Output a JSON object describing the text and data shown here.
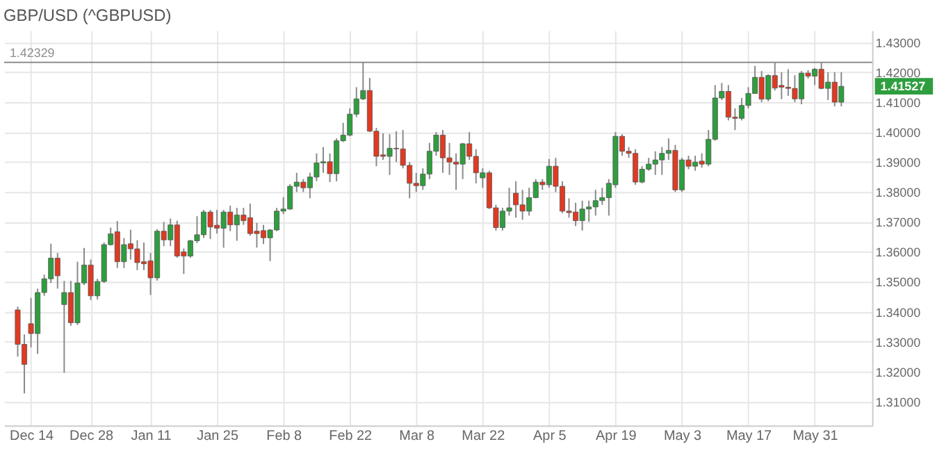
{
  "chart_data": {
    "type": "candlestick",
    "title": "GBP/USD (^GBPUSD)",
    "categories": [
      null,
      null,
      "Dec 14",
      null,
      null,
      null,
      null,
      null,
      null,
      null,
      null,
      "Dec 28",
      null,
      null,
      null,
      null,
      null,
      null,
      null,
      null,
      "Jan 11",
      null,
      null,
      null,
      null,
      null,
      null,
      null,
      null,
      null,
      "Jan 25",
      null,
      null,
      null,
      null,
      null,
      null,
      null,
      null,
      null,
      "Feb 8",
      null,
      null,
      null,
      null,
      null,
      null,
      null,
      null,
      null,
      "Feb 22",
      null,
      null,
      null,
      null,
      null,
      null,
      null,
      null,
      null,
      "Mar 8",
      null,
      null,
      null,
      null,
      null,
      null,
      null,
      null,
      null,
      "Mar 22",
      null,
      null,
      null,
      null,
      null,
      null,
      null,
      null,
      null,
      "Apr 5",
      null,
      null,
      null,
      null,
      null,
      null,
      null,
      null,
      null,
      "Apr 19",
      null,
      null,
      null,
      null,
      null,
      null,
      null,
      null,
      null,
      "May 3",
      null,
      null,
      null,
      null,
      null,
      null,
      null,
      null,
      null,
      "May 17",
      null,
      null,
      null,
      null,
      null,
      null,
      null,
      null,
      null,
      "May 31",
      null,
      null,
      null,
      null
    ],
    "ohlc": [
      [
        1.3406,
        1.3417,
        1.325,
        1.3291
      ],
      [
        1.3291,
        1.3324,
        1.3127,
        1.3224
      ],
      [
        1.336,
        1.3446,
        1.3281,
        1.3327
      ],
      [
        1.3327,
        1.3477,
        1.3259,
        1.3464
      ],
      [
        1.3464,
        1.3524,
        1.3453,
        1.351
      ],
      [
        1.351,
        1.3627,
        1.3496,
        1.3579
      ],
      [
        1.3579,
        1.3596,
        1.3477,
        1.352
      ],
      [
        1.3424,
        1.3503,
        1.3196,
        1.3464
      ],
      [
        1.3464,
        1.3503,
        1.3353,
        1.3363
      ],
      [
        1.3363,
        1.3567,
        1.3356,
        1.3496
      ],
      [
        1.3496,
        1.3613,
        1.3489,
        1.3556
      ],
      [
        1.3556,
        1.3574,
        1.3439,
        1.3453
      ],
      [
        1.3453,
        1.351,
        1.3441,
        1.3501
      ],
      [
        1.3501,
        1.3631,
        1.3496,
        1.3624
      ],
      [
        1.3624,
        1.3681,
        1.3621,
        1.366
      ],
      [
        1.3667,
        1.3703,
        1.3546,
        1.3567
      ],
      [
        1.3567,
        1.3646,
        1.3546,
        1.3624
      ],
      [
        1.3627,
        1.3674,
        1.3574,
        1.361
      ],
      [
        1.361,
        1.3639,
        1.3539,
        1.3564
      ],
      [
        1.3567,
        1.3631,
        1.3539,
        1.356
      ],
      [
        1.357,
        1.3596,
        1.3456,
        1.3513
      ],
      [
        1.3513,
        1.3676,
        1.3504,
        1.3669
      ],
      [
        1.3669,
        1.37,
        1.3619,
        1.364
      ],
      [
        1.364,
        1.3711,
        1.3619,
        1.369
      ],
      [
        1.369,
        1.3704,
        1.358,
        1.3586
      ],
      [
        1.36,
        1.3611,
        1.3526,
        1.3586
      ],
      [
        1.3586,
        1.364,
        1.358,
        1.3637
      ],
      [
        1.3637,
        1.3719,
        1.3629,
        1.3657
      ],
      [
        1.3657,
        1.374,
        1.3647,
        1.3733
      ],
      [
        1.3733,
        1.374,
        1.3643,
        1.3683
      ],
      [
        1.3689,
        1.374,
        1.3661,
        1.3679
      ],
      [
        1.3679,
        1.374,
        1.3614,
        1.3733
      ],
      [
        1.3733,
        1.3754,
        1.3669,
        1.369
      ],
      [
        1.369,
        1.3747,
        1.3637,
        1.3723
      ],
      [
        1.3723,
        1.3747,
        1.369,
        1.3704
      ],
      [
        1.3714,
        1.3761,
        1.3654,
        1.3661
      ],
      [
        1.3669,
        1.3697,
        1.3614,
        1.3661
      ],
      [
        1.3671,
        1.369,
        1.3626,
        1.3647
      ],
      [
        1.3647,
        1.3676,
        1.3569,
        1.3673
      ],
      [
        1.3673,
        1.3747,
        1.3669,
        1.3736
      ],
      [
        1.3736,
        1.3783,
        1.3726,
        1.3743
      ],
      [
        1.3743,
        1.3826,
        1.374,
        1.3819
      ],
      [
        1.3819,
        1.3864,
        1.38,
        1.3833
      ],
      [
        1.3833,
        1.3843,
        1.38,
        1.3814
      ],
      [
        1.3814,
        1.3864,
        1.3779,
        1.385
      ],
      [
        1.385,
        1.3929,
        1.3836,
        1.3897
      ],
      [
        1.3897,
        1.395,
        1.3864,
        1.3901
      ],
      [
        1.3901,
        1.3929,
        1.3833,
        1.3861
      ],
      [
        1.3861,
        1.3979,
        1.3836,
        1.3971
      ],
      [
        1.3971,
        1.4031,
        1.3967,
        1.399
      ],
      [
        1.399,
        1.4079,
        1.3986,
        1.406
      ],
      [
        1.406,
        1.415,
        1.405,
        1.4111
      ],
      [
        1.4111,
        1.4233,
        1.4107,
        1.4139
      ],
      [
        1.4139,
        1.4181,
        1.4,
        1.4003
      ],
      [
        1.4003,
        1.4014,
        1.3886,
        1.3919
      ],
      [
        1.3924,
        1.3996,
        1.3907,
        1.3919
      ],
      [
        1.3919,
        1.3993,
        1.3857,
        1.3946
      ],
      [
        1.3946,
        1.4003,
        1.39,
        1.3944
      ],
      [
        1.3944,
        1.4007,
        1.3879,
        1.3889
      ],
      [
        1.3889,
        1.39,
        1.3779,
        1.3829
      ],
      [
        1.3829,
        1.3864,
        1.38,
        1.3821
      ],
      [
        1.3821,
        1.3879,
        1.3807,
        1.386
      ],
      [
        1.386,
        1.3964,
        1.3843,
        1.3936
      ],
      [
        1.3936,
        1.4,
        1.3921,
        1.399
      ],
      [
        1.399,
        1.4007,
        1.3864,
        1.3914
      ],
      [
        1.3914,
        1.3964,
        1.3857,
        1.39
      ],
      [
        1.39,
        1.3929,
        1.3807,
        1.3893
      ],
      [
        1.3893,
        1.3964,
        1.3843,
        1.3961
      ],
      [
        1.3961,
        1.4,
        1.3907,
        1.3919
      ],
      [
        1.3919,
        1.3943,
        1.3829,
        1.3864
      ],
      [
        1.3847,
        1.3879,
        1.3814,
        1.3864
      ],
      [
        1.3864,
        1.3871,
        1.3743,
        1.3747
      ],
      [
        1.3747,
        1.3757,
        1.3671,
        1.3681
      ],
      [
        1.3681,
        1.3747,
        1.3671,
        1.3736
      ],
      [
        1.3736,
        1.3814,
        1.3721,
        1.3747
      ],
      [
        1.3796,
        1.3836,
        1.3714,
        1.3757
      ],
      [
        1.3757,
        1.3807,
        1.3707,
        1.3736
      ],
      [
        1.3736,
        1.3814,
        1.3721,
        1.3781
      ],
      [
        1.3781,
        1.3843,
        1.3779,
        1.3833
      ],
      [
        1.3833,
        1.3843,
        1.3807,
        1.3824
      ],
      [
        1.3824,
        1.391,
        1.3814,
        1.3886
      ],
      [
        1.3886,
        1.3914,
        1.38,
        1.3819
      ],
      [
        1.3819,
        1.3836,
        1.3729,
        1.3736
      ],
      [
        1.3736,
        1.3779,
        1.3714,
        1.3731
      ],
      [
        1.3733,
        1.3764,
        1.3686,
        1.3704
      ],
      [
        1.3704,
        1.3771,
        1.3671,
        1.3743
      ],
      [
        1.3743,
        1.3771,
        1.37,
        1.375
      ],
      [
        1.375,
        1.3807,
        1.3721,
        1.3771
      ],
      [
        1.3771,
        1.3814,
        1.3757,
        1.3781
      ],
      [
        1.3781,
        1.3843,
        1.3721,
        1.3829
      ],
      [
        1.3824,
        1.4,
        1.3814,
        1.3986
      ],
      [
        1.3986,
        1.3993,
        1.3921,
        1.3936
      ],
      [
        1.3936,
        1.395,
        1.3914,
        1.3929
      ],
      [
        1.3929,
        1.3943,
        1.3824,
        1.3833
      ],
      [
        1.3833,
        1.3886,
        1.3829,
        1.3876
      ],
      [
        1.3876,
        1.3914,
        1.3871,
        1.3893
      ],
      [
        1.3893,
        1.3936,
        1.3857,
        1.3907
      ],
      [
        1.3907,
        1.395,
        1.3857,
        1.3929
      ],
      [
        1.3929,
        1.3979,
        1.3907,
        1.3939
      ],
      [
        1.3939,
        1.3957,
        1.38,
        1.3807
      ],
      [
        1.3807,
        1.3914,
        1.38,
        1.3907
      ],
      [
        1.3907,
        1.3921,
        1.3876,
        1.3886
      ],
      [
        1.3886,
        1.3921,
        1.3871,
        1.39
      ],
      [
        1.3903,
        1.3929,
        1.3881,
        1.3893
      ],
      [
        1.3893,
        1.4007,
        1.3886,
        1.3976
      ],
      [
        1.3976,
        1.4157,
        1.3971,
        1.4114
      ],
      [
        1.4114,
        1.4164,
        1.4107,
        1.4136
      ],
      [
        1.4136,
        1.4157,
        1.4039,
        1.405
      ],
      [
        1.405,
        1.4079,
        1.4007,
        1.4046
      ],
      [
        1.4046,
        1.4114,
        1.4039,
        1.4089
      ],
      [
        1.4089,
        1.415,
        1.4079,
        1.4129
      ],
      [
        1.4129,
        1.4221,
        1.4129,
        1.4183
      ],
      [
        1.4183,
        1.4204,
        1.41,
        1.411
      ],
      [
        1.411,
        1.4193,
        1.4103,
        1.4189
      ],
      [
        1.4189,
        1.4233,
        1.4139,
        1.4147
      ],
      [
        1.4156,
        1.42,
        1.411,
        1.415
      ],
      [
        1.415,
        1.421,
        1.4121,
        1.4146
      ],
      [
        1.4146,
        1.419,
        1.41,
        1.4111
      ],
      [
        1.4111,
        1.4204,
        1.4093,
        1.4197
      ],
      [
        1.4197,
        1.4207,
        1.4179,
        1.4187
      ],
      [
        1.4187,
        1.4214,
        1.4157,
        1.421
      ],
      [
        1.421,
        1.4233,
        1.4143,
        1.4146
      ],
      [
        1.4146,
        1.42,
        1.4107,
        1.4167
      ],
      [
        1.4167,
        1.42,
        1.4086,
        1.41
      ],
      [
        1.41,
        1.42,
        1.4086,
        1.4153
      ]
    ],
    "colors": [
      "#e03a22",
      "#e03a22",
      "#e03a22",
      "#2e9e3e",
      "#2e9e3e",
      "#2e9e3e",
      "#e03a22",
      "#2e9e3e",
      "#e03a22",
      "#2e9e3e",
      "#2e9e3e",
      "#e03a22",
      "#2e9e3e",
      "#2e9e3e",
      "#2e9e3e",
      "#e03a22",
      "#2e9e3e",
      "#e03a22",
      "#e03a22",
      "#e03a22",
      "#e03a22",
      "#2e9e3e",
      "#e03a22",
      "#2e9e3e",
      "#e03a22",
      "#e03a22",
      "#2e9e3e",
      "#2e9e3e",
      "#2e9e3e",
      "#e03a22",
      "#e03a22",
      "#2e9e3e",
      "#e03a22",
      "#2e9e3e",
      "#e03a22",
      "#e03a22",
      "#e03a22",
      "#e03a22",
      "#2e9e3e",
      "#2e9e3e",
      "#2e9e3e",
      "#2e9e3e",
      "#2e9e3e",
      "#e03a22",
      "#2e9e3e",
      "#2e9e3e",
      "#2e9e3e",
      "#e03a22",
      "#2e9e3e",
      "#2e9e3e",
      "#2e9e3e",
      "#2e9e3e",
      "#2e9e3e",
      "#e03a22",
      "#e03a22",
      "#e03a22",
      "#2e9e3e",
      "#e03a22",
      "#e03a22",
      "#e03a22",
      "#e03a22",
      "#2e9e3e",
      "#2e9e3e",
      "#2e9e3e",
      "#e03a22",
      "#e03a22",
      "#e03a22",
      "#2e9e3e",
      "#e03a22",
      "#e03a22",
      "#2e9e3e",
      "#e03a22",
      "#e03a22",
      "#2e9e3e",
      "#2e9e3e",
      "#e03a22",
      "#e03a22",
      "#2e9e3e",
      "#2e9e3e",
      "#e03a22",
      "#2e9e3e",
      "#e03a22",
      "#e03a22",
      "#e03a22",
      "#e03a22",
      "#2e9e3e",
      "#2e9e3e",
      "#2e9e3e",
      "#2e9e3e",
      "#2e9e3e",
      "#2e9e3e",
      "#e03a22",
      "#e03a22",
      "#e03a22",
      "#2e9e3e",
      "#2e9e3e",
      "#2e9e3e",
      "#2e9e3e",
      "#2e9e3e",
      "#e03a22",
      "#2e9e3e",
      "#e03a22",
      "#2e9e3e",
      "#e03a22",
      "#2e9e3e",
      "#2e9e3e",
      "#2e9e3e",
      "#e03a22",
      "#e03a22",
      "#2e9e3e",
      "#2e9e3e",
      "#2e9e3e",
      "#e03a22",
      "#2e9e3e",
      "#e03a22",
      "#e03a22",
      "#e03a22",
      "#e03a22",
      "#2e9e3e",
      "#e03a22",
      "#2e9e3e",
      "#e03a22",
      "#2e9e3e",
      "#e03a22",
      "#2e9e3e"
    ],
    "ylim": [
      1.302,
      1.434
    ],
    "yticks": [
      {
        "value": 1.31,
        "label": "1.31000"
      },
      {
        "value": 1.32,
        "label": "1.32000"
      },
      {
        "value": 1.33,
        "label": "1.33000"
      },
      {
        "value": 1.34,
        "label": "1.34000"
      },
      {
        "value": 1.35,
        "label": "1.35000"
      },
      {
        "value": 1.36,
        "label": "1.36000"
      },
      {
        "value": 1.37,
        "label": "1.37000"
      },
      {
        "value": 1.38,
        "label": "1.38000"
      },
      {
        "value": 1.39,
        "label": "1.39000"
      },
      {
        "value": 1.4,
        "label": "1.40000"
      },
      {
        "value": 1.41,
        "label": "1.41000"
      },
      {
        "value": 1.42,
        "label": "1.42000"
      },
      {
        "value": 1.43,
        "label": "1.43000"
      }
    ],
    "ref_lines": [
      {
        "axis": "y",
        "value": 1.42329,
        "label": "1.42329",
        "color": "#8c8c8c"
      }
    ],
    "annotations": [
      "1.41527"
    ],
    "grid": true
  }
}
